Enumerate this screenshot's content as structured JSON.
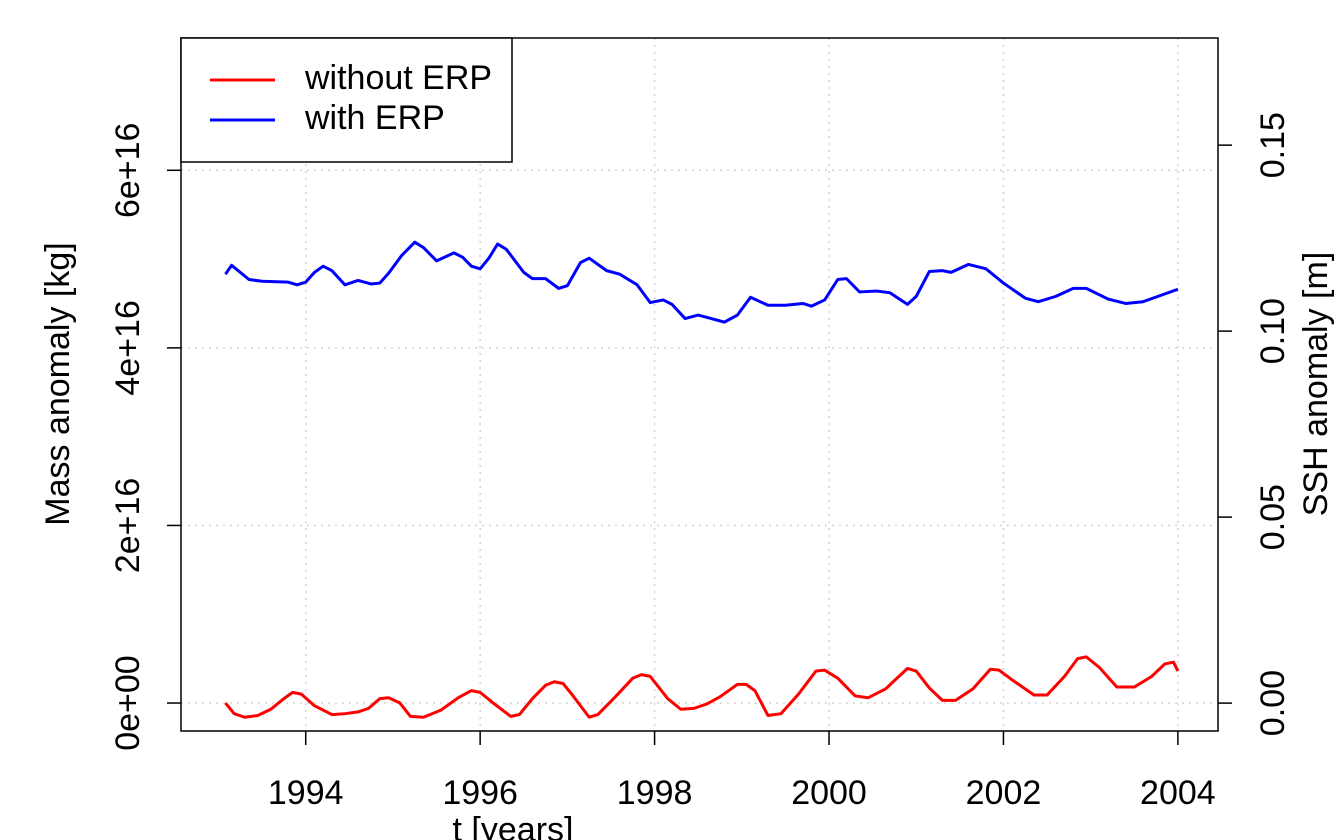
{
  "chart_data": {
    "type": "line",
    "xlabel": "t [years]",
    "ylabel": "Mass anomaly [kg]",
    "y2label": "SSH anomaly [m]",
    "xlim": [
      1992.57,
      2004.46
    ],
    "xticks": [
      1994,
      1996,
      1998,
      2000,
      2002,
      2004
    ],
    "ylim": [
      -3150000000000000.0,
      7.49e+16
    ],
    "yticks": [
      {
        "value": 0,
        "label": "0e+00"
      },
      {
        "value": 2e+16,
        "label": "2e+16"
      },
      {
        "value": 4e+16,
        "label": "4e+16"
      },
      {
        "value": 6e+16,
        "label": "6e+16"
      }
    ],
    "y2lim": [
      -0.0075,
      0.1788
    ],
    "y2ticks": [
      {
        "value": 0,
        "label": "0.00"
      },
      {
        "value": 0.05,
        "label": "0.05"
      },
      {
        "value": 0.1,
        "label": "0.10"
      },
      {
        "value": 0.15,
        "label": "0.15"
      }
    ],
    "grid": true,
    "legend": "top-left",
    "series": [
      {
        "name": "without ERP",
        "color": "#ff0000",
        "x": [
          1993.08,
          1993.18,
          1993.3,
          1993.45,
          1993.6,
          1993.75,
          1993.85,
          1993.95,
          1994.1,
          1994.3,
          1994.45,
          1994.6,
          1994.72,
          1994.85,
          1994.95,
          1995.08,
          1995.2,
          1995.35,
          1995.55,
          1995.75,
          1995.9,
          1996.0,
          1996.15,
          1996.35,
          1996.45,
          1996.6,
          1996.75,
          1996.85,
          1996.95,
          1997.05,
          1997.25,
          1997.35,
          1997.55,
          1997.75,
          1997.85,
          1997.95,
          1998.15,
          1998.3,
          1998.45,
          1998.6,
          1998.75,
          1998.95,
          1999.05,
          1999.15,
          1999.3,
          1999.45,
          1999.65,
          1999.85,
          1999.95,
          2000.1,
          2000.3,
          2000.45,
          2000.65,
          2000.9,
          2001.0,
          2001.15,
          2001.3,
          2001.45,
          2001.65,
          2001.85,
          2001.95,
          2002.1,
          2002.35,
          2002.5,
          2002.7,
          2002.85,
          2002.95,
          2003.1,
          2003.3,
          2003.5,
          2003.7,
          2003.85,
          2003.95,
          2004.0
        ],
        "values": [
          0,
          -1200000000000000.0,
          -1600000000000000.0,
          -1400000000000000.0,
          -700000000000000.0,
          500000000000000.0,
          1200000000000000.0,
          1000000000000000.0,
          -300000000000000.0,
          -1300000000000000.0,
          -1200000000000000.0,
          -1000000000000000.0,
          -600000000000000.0,
          500000000000000.0,
          600000000000000.0,
          0,
          -1500000000000000.0,
          -1600000000000000.0,
          -800000000000000.0,
          600000000000000.0,
          1400000000000000.0,
          1200000000000000.0,
          0,
          -1500000000000000.0,
          -1300000000000000.0,
          500000000000000.0,
          2000000000000000.0,
          2400000000000000.0,
          2200000000000000.0,
          1000000000000000.0,
          -1600000000000000.0,
          -1300000000000000.0,
          700000000000000.0,
          2800000000000000.0,
          3200000000000000.0,
          3000000000000000.0,
          500000000000000.0,
          -700000000000000.0,
          -600000000000000.0,
          -100000000000000.0,
          700000000000000.0,
          2100000000000000.0,
          2100000000000000.0,
          1400000000000000.0,
          -1400000000000000.0,
          -1200000000000000.0,
          1000000000000000.0,
          3600000000000000.0,
          3700000000000000.0,
          2800000000000000.0,
          800000000000000.0,
          600000000000000.0,
          1600000000000000.0,
          3900000000000000.0,
          3600000000000000.0,
          1700000000000000.0,
          300000000000000.0,
          300000000000000.0,
          1600000000000000.0,
          3800000000000000.0,
          3700000000000000.0,
          2600000000000000.0,
          900000000000000.0,
          900000000000000.0,
          3000000000000000.0,
          5000000000000000.0,
          5200000000000000.0,
          4000000000000000.0,
          1800000000000000.0,
          1800000000000000.0,
          3000000000000000.0,
          4400000000000000.0,
          4600000000000000.0,
          3600000000000000.0
        ]
      },
      {
        "name": "with ERP",
        "color": "#0000ff",
        "x": [
          1993.08,
          1993.15,
          1993.35,
          1993.5,
          1993.8,
          1993.9,
          1994.0,
          1994.1,
          1994.2,
          1994.3,
          1994.45,
          1994.6,
          1994.75,
          1994.85,
          1994.95,
          1995.1,
          1995.25,
          1995.35,
          1995.5,
          1995.7,
          1995.8,
          1995.9,
          1996.0,
          1996.1,
          1996.2,
          1996.3,
          1996.5,
          1996.6,
          1996.75,
          1996.9,
          1997.0,
          1997.15,
          1997.25,
          1997.45,
          1997.6,
          1997.8,
          1997.95,
          1998.1,
          1998.2,
          1998.35,
          1998.5,
          1998.65,
          1998.8,
          1998.95,
          1999.1,
          1999.3,
          1999.5,
          1999.7,
          1999.8,
          1999.95,
          2000.1,
          2000.2,
          2000.35,
          2000.55,
          2000.7,
          2000.9,
          2001.0,
          2001.15,
          2001.3,
          2001.4,
          2001.6,
          2001.8,
          2002.0,
          2002.25,
          2002.4,
          2002.6,
          2002.8,
          2002.95,
          2003.2,
          2003.4,
          2003.6,
          2003.8,
          2004.0
        ],
        "values": [
          4.83e+16,
          4.93e+16,
          4.77e+16,
          4.75e+16,
          4.74e+16,
          4.71e+16,
          4.74e+16,
          4.85e+16,
          4.92e+16,
          4.87e+16,
          4.71e+16,
          4.76e+16,
          4.72e+16,
          4.73e+16,
          4.84e+16,
          5.04e+16,
          5.19e+16,
          5.13e+16,
          4.98e+16,
          5.07e+16,
          5.02e+16,
          4.92e+16,
          4.89e+16,
          5.01e+16,
          5.17e+16,
          5.11e+16,
          4.85e+16,
          4.78e+16,
          4.78e+16,
          4.67e+16,
          4.7e+16,
          4.96e+16,
          5.01e+16,
          4.87e+16,
          4.83e+16,
          4.71e+16,
          4.51e+16,
          4.54e+16,
          4.49e+16,
          4.33e+16,
          4.37e+16,
          4.33e+16,
          4.29e+16,
          4.37e+16,
          4.57e+16,
          4.48e+16,
          4.48e+16,
          4.5e+16,
          4.47e+16,
          4.54e+16,
          4.77e+16,
          4.78e+16,
          4.63e+16,
          4.64e+16,
          4.62e+16,
          4.49e+16,
          4.58e+16,
          4.86e+16,
          4.87e+16,
          4.85e+16,
          4.94e+16,
          4.89e+16,
          4.73e+16,
          4.56e+16,
          4.52e+16,
          4.58e+16,
          4.67e+16,
          4.67e+16,
          4.55e+16,
          4.5e+16,
          4.52e+16,
          4.59e+16,
          4.66e+16
        ]
      }
    ]
  }
}
